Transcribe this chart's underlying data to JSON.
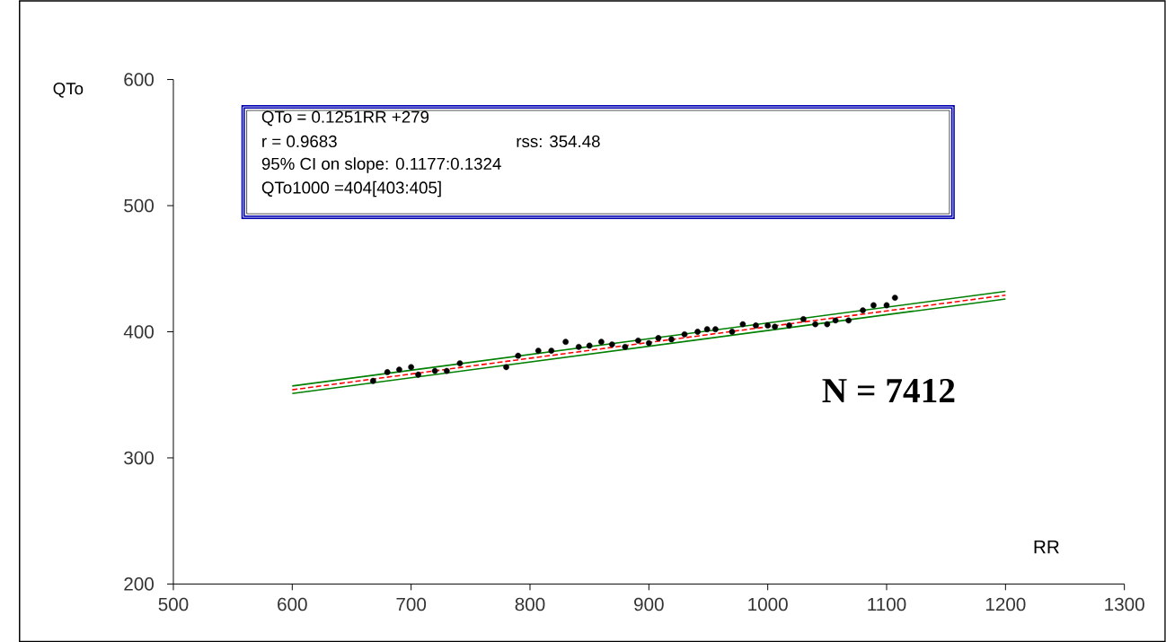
{
  "chart_data": {
    "type": "scatter",
    "xlabel": "RR",
    "ylabel": "QTo",
    "xlim": [
      500,
      1300
    ],
    "xticks": [
      500,
      600,
      700,
      800,
      900,
      1000,
      1100,
      1200,
      1300
    ],
    "ylim": [
      200,
      600
    ],
    "yticks": [
      200,
      300,
      400,
      500,
      600
    ],
    "series": [
      {
        "type": "scatter",
        "color": "#000000",
        "marker": "circle",
        "x": [
          668,
          680,
          690,
          700,
          706,
          720,
          730,
          741,
          780,
          790,
          807,
          818,
          830,
          841,
          850,
          860,
          869,
          880,
          891,
          900,
          908,
          919,
          930,
          941,
          949,
          956,
          970,
          979,
          990,
          1000,
          1006,
          1018,
          1030,
          1040,
          1050,
          1057,
          1068,
          1080,
          1089,
          1100,
          1107
        ],
        "values": [
          361,
          368,
          370,
          372,
          366,
          369,
          369,
          375,
          372,
          381,
          385,
          385,
          392,
          388,
          389,
          392,
          390,
          388,
          393,
          391,
          395,
          394,
          398,
          400,
          402,
          402,
          400,
          406,
          405,
          405,
          404,
          405,
          410,
          406,
          406,
          409,
          409,
          417,
          421,
          421,
          427
        ]
      },
      {
        "type": "line",
        "color": "#008000",
        "line_style": "solid",
        "marker": "none",
        "x": [
          600,
          1200
        ],
        "values": [
          357,
          432
        ]
      },
      {
        "type": "line",
        "color": "#008000",
        "line_style": "solid",
        "marker": "none",
        "x": [
          600,
          1200
        ],
        "values": [
          351,
          426
        ]
      },
      {
        "type": "line",
        "color": "#ff0000",
        "line_style": "dashed",
        "marker": "none",
        "x": [
          600,
          1200
        ],
        "values": [
          354,
          429
        ]
      }
    ],
    "annotations": [
      "QTo = 0.1251RR  +279",
      "r = 0.9683",
      "rss: 354.48",
      "95% CI on slope: 0.1177:0.1324",
      "QTo1000 =404[403:405]",
      "N = 7412"
    ]
  }
}
